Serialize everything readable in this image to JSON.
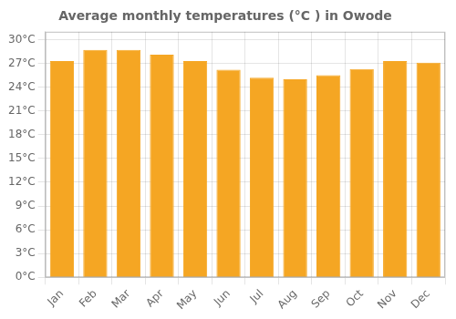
{
  "chart_data": {
    "type": "bar",
    "title": "Average monthly temperatures (°C ) in Owode",
    "categories": [
      "Jan",
      "Feb",
      "Mar",
      "Apr",
      "May",
      "Jun",
      "Jul",
      "Aug",
      "Sep",
      "Oct",
      "Nov",
      "Dec"
    ],
    "values": [
      27.3,
      28.7,
      28.7,
      28.1,
      27.3,
      26.2,
      25.2,
      25.0,
      25.5,
      26.3,
      27.3,
      27.1
    ],
    "color": "#F5A623",
    "ylim": [
      0,
      31
    ],
    "yticks": [
      {
        "value": 0,
        "label": "0°C"
      },
      {
        "value": 3,
        "label": "3°C"
      },
      {
        "value": 6,
        "label": "6°C"
      },
      {
        "value": 9,
        "label": "9°C"
      },
      {
        "value": 12,
        "label": "12°C"
      },
      {
        "value": 15,
        "label": "15°C"
      },
      {
        "value": 18,
        "label": "18°C"
      },
      {
        "value": 21,
        "label": "21°C"
      },
      {
        "value": 24,
        "label": "24°C"
      },
      {
        "value": 27,
        "label": "27°C"
      },
      {
        "value": 30,
        "label": "30°C"
      }
    ],
    "grid": true
  }
}
